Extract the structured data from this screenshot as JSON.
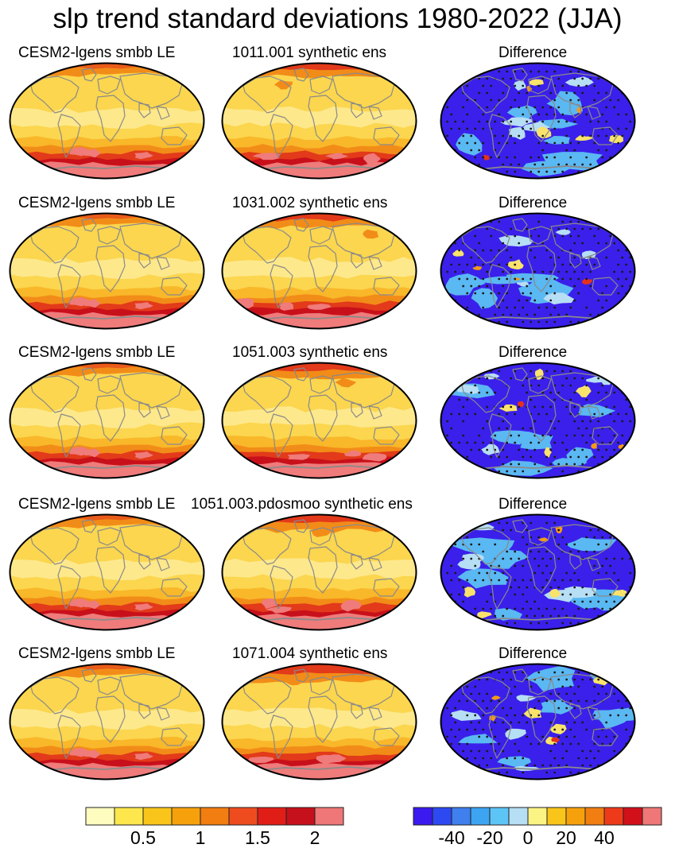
{
  "figure": {
    "title": "slp trend standard deviations 1980-2022 (JJA)"
  },
  "rows": [
    {
      "left_title": "CESM2-lgens smbb LE",
      "middle_title": "1011.001 synthetic ens",
      "right_title": "Difference"
    },
    {
      "left_title": "CESM2-lgens smbb LE",
      "middle_title": "1031.002 synthetic ens",
      "right_title": "Difference"
    },
    {
      "left_title": "CESM2-lgens smbb LE",
      "middle_title": "1051.003 synthetic ens",
      "right_title": "Difference"
    },
    {
      "left_title": "CESM2-lgens smbb LE",
      "middle_title": "1051.003.pdosmoo synthetic ens",
      "right_title": "Difference"
    },
    {
      "left_title": "CESM2-lgens smbb LE",
      "middle_title": "1071.004 synthetic ens",
      "right_title": "Difference"
    }
  ],
  "colorbars": {
    "std": {
      "colors": [
        "#fffcc0",
        "#fde74c",
        "#f9c51a",
        "#f6a10c",
        "#f27d10",
        "#ee4c1e",
        "#e11d18",
        "#c6101b",
        "#ef7777"
      ],
      "labels": [
        "0.5",
        "1",
        "1.5",
        "2"
      ]
    },
    "diff": {
      "colors": [
        "#3a1aee",
        "#2c49f2",
        "#3f7fee",
        "#3da4f2",
        "#5dc4f6",
        "#b6def4",
        "#fbf384",
        "#f9c51a",
        "#f6a10c",
        "#f27d10",
        "#ee3a1a",
        "#d1101a",
        "#ef7777"
      ],
      "labels": [
        "-40",
        "-20",
        "0",
        "20",
        "40"
      ]
    }
  },
  "map_palette": {
    "std_base": "#fbd64e",
    "std_tropics": "#fde88c",
    "std_band_mid": "#f9b72a",
    "std_band_orange": "#f28c18",
    "std_band_red": "#e23a1a",
    "std_band_dark": "#c8101b",
    "std_antarctic": "#ef7b7b",
    "diff_base": "#3a20ea",
    "diff_light": "#5ab8f2",
    "diff_pale": "#b6def4",
    "diff_yellow": "#f9e36a",
    "diff_orange": "#f59a18",
    "diff_red": "#e7321a",
    "coast": "#8a8a8a",
    "stipple": "#1a1a1a",
    "outline": "#000000"
  }
}
